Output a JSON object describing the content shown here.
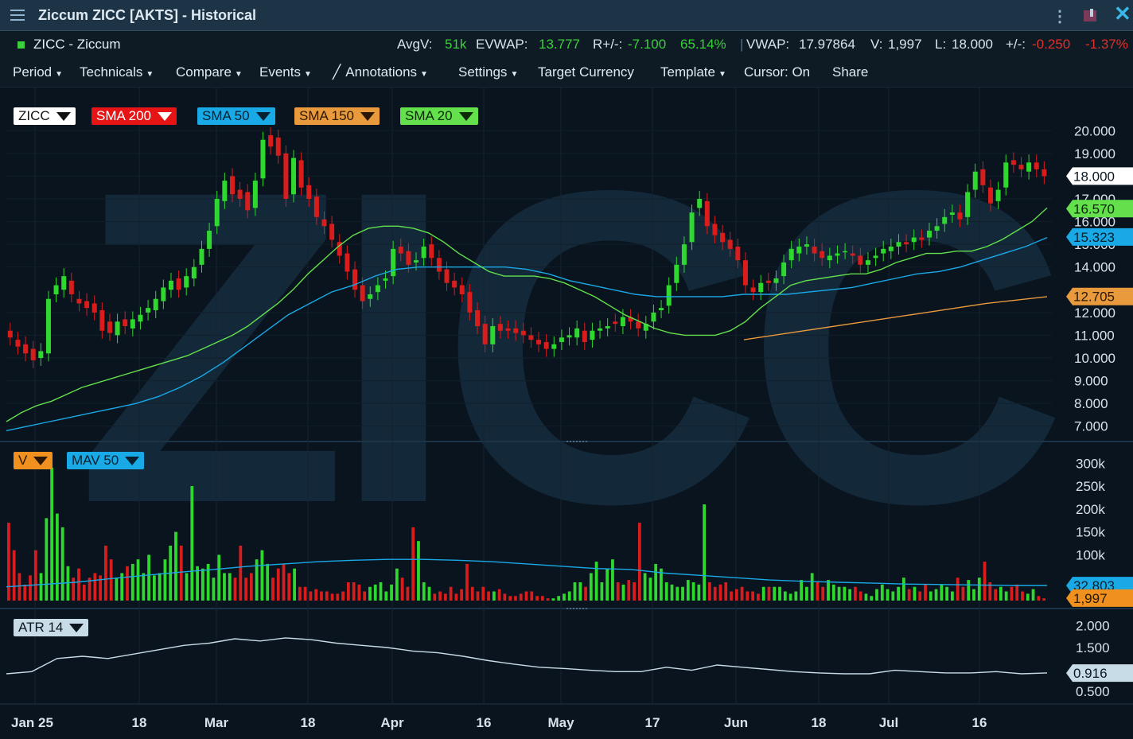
{
  "window": {
    "title": "Ziccum ZICC [AKTS] - Historical"
  },
  "quote": {
    "name": "ZICC - Ziccum",
    "avgv_label": "AvgV:",
    "avgv": "51k",
    "evwap_label": "EVWAP:",
    "evwap": "13.777",
    "r_label": "R+/-:",
    "r_change": "-7.100",
    "r_pct": "65.14%",
    "vwap_label": "VWAP:",
    "vwap": "17.97864",
    "v_label": "V:",
    "v": "1,997",
    "l_label": "L:",
    "l": "18.000",
    "chg_label": "+/-:",
    "chg": "-0.250",
    "chg_pct": "-1.37%"
  },
  "toolbar": {
    "period": "Period",
    "technicals": "Technicals",
    "compare": "Compare",
    "events": "Events",
    "annotations": "Annotations",
    "settings": "Settings",
    "target_currency": "Target Currency",
    "template": "Template",
    "cursor": "Cursor: On",
    "share": "Share"
  },
  "colors": {
    "up": "#2fd82f",
    "down": "#d91c1c",
    "sma200": "#e61414",
    "sma50": "#19a9e6",
    "sma150": "#e89a3c",
    "sma20": "#63e04b",
    "atr": "#c8dce8",
    "mav50": "#19a9e6"
  },
  "legend": {
    "price": [
      "ZICC",
      "SMA 200",
      "SMA 50",
      "SMA 150",
      "SMA 20"
    ],
    "volume": [
      "V",
      "MAV 50"
    ],
    "atr": [
      "ATR 14"
    ]
  },
  "watermark": "ZICC",
  "chart_data": [
    {
      "type": "candlestick",
      "title": "ZICC",
      "ylim": [
        6.5,
        20.5
      ],
      "yticks": [
        "20.000",
        "19.000",
        "18.000",
        "17.000",
        "16.000",
        "15.000",
        "14.000",
        "12.000",
        "11.000",
        "10.000",
        "9.000",
        "8.000",
        "7.000"
      ],
      "last_value_labels": [
        {
          "label": "18.000",
          "series": "ZICC"
        },
        {
          "label": "16.570",
          "series": "SMA 20"
        },
        {
          "label": "15.323",
          "series": "SMA 50"
        },
        {
          "label": "12.705",
          "series": "SMA 150"
        }
      ],
      "xtick_labels": [
        "Jan 25",
        "18",
        "Mar",
        "18",
        "Apr",
        "16",
        "May",
        "17",
        "Jun",
        "18",
        "Jul",
        "16"
      ],
      "close": [
        10.9,
        10.5,
        10.2,
        9.9,
        10.3,
        12.6,
        13.2,
        13.6,
        12.8,
        12.4,
        12.2,
        12.0,
        11.2,
        11.1,
        11.6,
        11.4,
        11.7,
        11.9,
        12.2,
        12.6,
        13.1,
        13.4,
        13.0,
        13.6,
        14.0,
        14.8,
        15.6,
        17.0,
        17.8,
        17.2,
        17.0,
        16.5,
        17.8,
        19.6,
        19.3,
        18.9,
        17.0,
        18.8,
        17.5,
        17.0,
        16.2,
        15.8,
        15.2,
        14.5,
        13.8,
        13.0,
        12.5,
        12.8,
        13.2,
        13.5,
        14.8,
        14.6,
        14.1,
        14.3,
        14.9,
        14.4,
        13.8,
        13.3,
        13.1,
        12.8,
        12.0,
        11.4,
        10.6,
        11.4,
        11.2,
        11.2,
        11.1,
        11.0,
        10.8,
        10.6,
        10.4,
        10.6,
        10.9,
        11.0,
        11.3,
        10.7,
        11.2,
        11.3,
        11.4,
        11.5,
        11.8,
        11.6,
        11.3,
        11.5,
        12.0,
        12.2,
        13.2,
        14.1,
        15.0,
        16.4,
        17.0,
        15.8,
        15.4,
        15.1,
        14.8,
        14.3,
        13.2,
        12.9,
        13.3,
        13.3,
        13.5,
        14.2,
        14.8,
        14.9,
        15.0,
        14.6,
        14.4,
        14.5,
        14.6,
        14.7,
        14.5,
        14.1,
        14.3,
        14.5,
        14.8,
        14.9,
        15.1,
        15.0,
        15.3,
        15.2,
        15.6,
        15.8,
        16.2,
        16.4,
        16.1,
        17.3,
        18.2,
        17.6,
        16.8,
        17.4,
        18.6,
        18.5,
        18.3,
        18.6,
        18.3,
        18.0
      ],
      "open": [
        11.2,
        10.8,
        10.6,
        10.4,
        10.0,
        10.2,
        12.8,
        13.0,
        13.4,
        12.6,
        12.5,
        12.4,
        12.1,
        11.6,
        11.0,
        11.7,
        11.3,
        11.6,
        12.0,
        12.1,
        12.5,
        13.0,
        13.5,
        13.1,
        13.5,
        14.1,
        14.8,
        15.8,
        16.9,
        18.0,
        17.4,
        17.3,
        16.6,
        17.9,
        19.8,
        19.7,
        19.0,
        17.2,
        18.7,
        17.6,
        17.1,
        16.1,
        15.9,
        15.1,
        14.6,
        13.9,
        13.2,
        12.6,
        12.9,
        13.4,
        13.6,
        14.9,
        14.7,
        14.2,
        14.4,
        15.0,
        14.4,
        13.9,
        13.4,
        13.2,
        12.9,
        12.1,
        11.5,
        10.6,
        11.5,
        11.3,
        11.3,
        11.2,
        11.0,
        10.8,
        10.7,
        10.4,
        10.7,
        10.9,
        10.9,
        11.2,
        10.8,
        11.2,
        11.3,
        11.6,
        11.4,
        11.8,
        11.6,
        11.2,
        11.6,
        12.1,
        12.3,
        13.3,
        14.1,
        15.1,
        16.6,
        16.9,
        15.9,
        15.5,
        15.2,
        14.9,
        14.3,
        13.1,
        12.9,
        13.4,
        13.3,
        13.6,
        14.3,
        14.6,
        14.9,
        14.9,
        14.7,
        14.3,
        14.5,
        14.7,
        14.6,
        14.5,
        14.1,
        14.4,
        14.6,
        14.7,
        14.9,
        15.1,
        15.1,
        15.3,
        15.3,
        15.6,
        15.9,
        16.3,
        16.4,
        16.2,
        17.4,
        18.3,
        17.5,
        16.9,
        17.5,
        18.7,
        18.5,
        18.2,
        18.6,
        18.3
      ],
      "sma20": [
        7.2,
        7.6,
        7.9,
        8.1,
        8.4,
        8.7,
        8.9,
        9.1,
        9.3,
        9.5,
        9.7,
        9.9,
        10.1,
        10.4,
        10.7,
        11.0,
        11.4,
        11.9,
        12.4,
        13.0,
        13.7,
        14.3,
        14.9,
        15.4,
        15.7,
        15.8,
        15.8,
        15.7,
        15.5,
        15.1,
        14.6,
        14.2,
        13.8,
        13.6,
        13.6,
        13.6,
        13.5,
        13.3,
        13.0,
        12.7,
        12.3,
        11.9,
        11.6,
        11.3,
        11.1,
        11.0,
        11.0,
        11.0,
        11.2,
        11.6,
        12.2,
        12.7,
        13.2,
        13.4,
        13.5,
        13.6,
        13.7,
        13.7,
        13.9,
        14.2,
        14.4,
        14.6,
        14.6,
        14.7,
        14.7,
        14.9,
        15.2,
        15.6,
        16.0,
        16.6
      ],
      "sma50": [
        6.8,
        7.0,
        7.2,
        7.4,
        7.6,
        7.8,
        8.0,
        8.3,
        8.7,
        9.2,
        9.8,
        10.5,
        11.2,
        11.9,
        12.4,
        12.9,
        13.2,
        13.6,
        13.9,
        14.0,
        14.0,
        14.0,
        14.0,
        14.0,
        13.9,
        13.7,
        13.4,
        13.2,
        13.0,
        12.8,
        12.7,
        12.7,
        12.7,
        12.7,
        12.8,
        12.8,
        12.8,
        12.9,
        13.0,
        13.1,
        13.3,
        13.5,
        13.7,
        13.8,
        14.0,
        14.3,
        14.6,
        14.9,
        15.3
      ],
      "sma150": [
        10.8,
        11.2,
        11.6,
        12.0,
        12.4,
        12.7
      ],
      "watermark": "ZICC"
    },
    {
      "type": "bar",
      "title": "V",
      "ylim": [
        0,
        330000
      ],
      "yticks": [
        "300k",
        "250k",
        "200k",
        "150k",
        "100k"
      ],
      "last_value_labels": [
        {
          "label": "32,803",
          "series": "MAV 50"
        },
        {
          "label": "1,997",
          "series": "V"
        }
      ],
      "values": [
        170,
        110,
        60,
        35,
        55,
        110,
        60,
        180,
        290,
        190,
        160,
        75,
        50,
        70,
        35,
        50,
        60,
        55,
        120,
        90,
        50,
        60,
        75,
        80,
        90,
        60,
        100,
        55,
        60,
        90,
        120,
        150,
        120,
        60,
        250,
        75,
        70,
        80,
        50,
        100,
        60,
        60,
        50,
        120,
        50,
        60,
        90,
        110,
        80,
        50,
        70,
        80,
        60,
        70,
        30,
        30,
        20,
        25,
        20,
        20,
        15,
        15,
        20,
        40,
        40,
        35,
        20,
        30,
        35,
        40,
        20,
        35,
        70,
        50,
        30,
        160,
        130,
        40,
        30,
        15,
        20,
        15,
        30,
        15,
        25,
        80,
        30,
        20,
        30,
        20,
        20,
        25,
        15,
        10,
        10,
        15,
        20,
        20,
        10,
        10,
        5,
        5,
        10,
        15,
        20,
        40,
        40,
        30,
        60,
        85,
        40,
        70,
        90,
        40,
        35,
        45,
        40,
        170,
        60,
        50,
        80,
        70,
        40,
        35,
        30,
        30,
        45,
        40,
        35,
        210,
        40,
        30,
        35,
        40,
        20,
        25,
        30,
        20,
        20,
        15,
        30,
        30,
        30,
        30,
        20,
        15,
        20,
        45,
        30,
        60,
        40,
        30,
        45,
        35,
        30,
        30,
        25,
        30,
        20,
        15,
        10,
        25,
        35,
        25,
        20,
        30,
        50,
        25,
        30,
        20,
        35,
        20,
        25,
        35,
        30,
        20,
        50,
        30,
        45,
        25,
        50,
        85,
        40,
        25,
        30,
        20,
        30,
        35,
        20,
        15,
        25,
        10,
        5
      ],
      "mav50": [
        30,
        35,
        40,
        48,
        55,
        62,
        68,
        75,
        80,
        85,
        88,
        90,
        90,
        88,
        85,
        80,
        75,
        70,
        68,
        60,
        55,
        50,
        45,
        42,
        40,
        38,
        36,
        35,
        34,
        33,
        33
      ]
    },
    {
      "type": "line",
      "title": "ATR 14",
      "ylim": [
        0.3,
        2.3
      ],
      "yticks": [
        "2.000",
        "1.500",
        "1.000",
        "0.500"
      ],
      "last_value_labels": [
        {
          "label": "0.916",
          "series": "ATR 14"
        }
      ],
      "values": [
        0.9,
        0.95,
        1.25,
        1.3,
        1.25,
        1.35,
        1.45,
        1.55,
        1.6,
        1.7,
        1.65,
        1.72,
        1.68,
        1.6,
        1.55,
        1.5,
        1.42,
        1.38,
        1.3,
        1.2,
        1.12,
        1.05,
        1.02,
        0.98,
        0.95,
        0.95,
        1.05,
        0.98,
        1.1,
        1.05,
        1.0,
        0.95,
        0.92,
        0.9,
        0.9,
        0.98,
        0.95,
        0.92,
        0.92,
        0.95,
        0.9,
        0.92
      ]
    }
  ]
}
